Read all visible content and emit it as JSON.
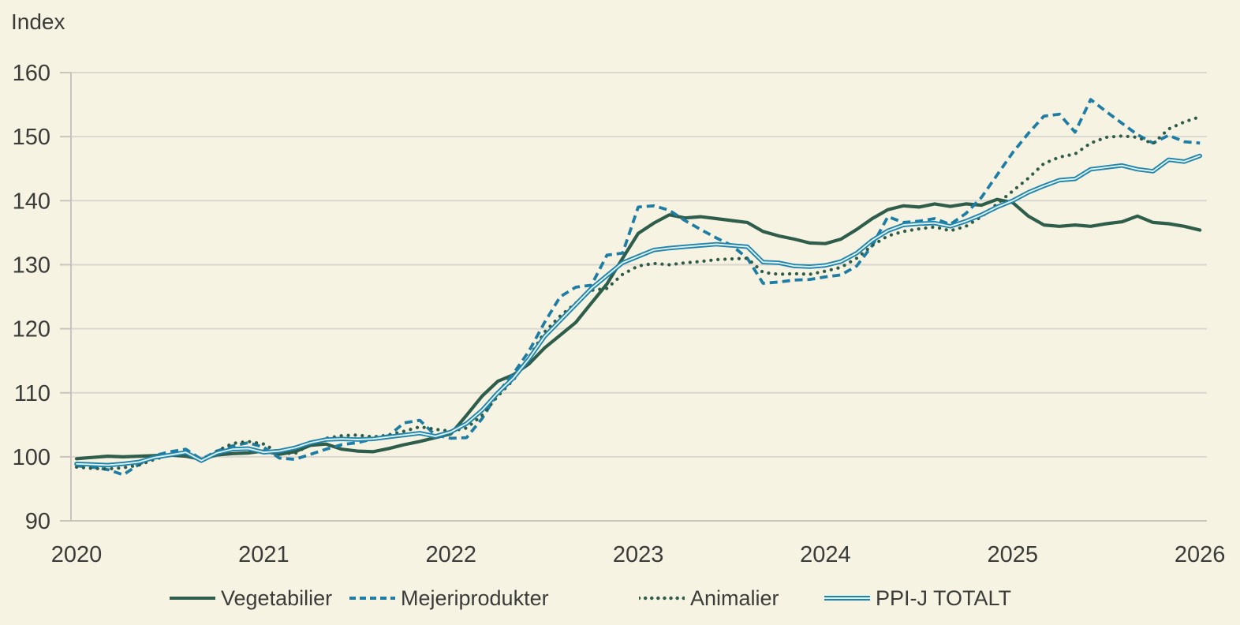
{
  "chart_data": {
    "type": "line",
    "title": "",
    "ylabel": "Index",
    "ylim": [
      90,
      160
    ],
    "yticks": [
      90,
      100,
      110,
      120,
      130,
      140,
      150,
      160
    ],
    "x_tick_labels": [
      "2020",
      "2021",
      "2022",
      "2023",
      "2024",
      "2025",
      "2026"
    ],
    "x_unit": "month",
    "x_range": "2020-01 to 2026-01",
    "grid": "horizontal",
    "legend_position": "bottom",
    "colors": {
      "background": "#f7f3e2",
      "gridline": "#d9d7cf",
      "axis": "#c7c5bd",
      "text": "#3b3b3a",
      "vegetabilier": "#2e5e4b",
      "mejeriprodukter": "#1d7da4",
      "animalier": "#2e5c49",
      "ppij_totalt": "#1e84ab",
      "ppij_totalt_inner": "#dff0f4"
    },
    "series": [
      {
        "name": "Vegetabilier",
        "style": "solid",
        "color": "#2e5e4b",
        "values": [
          99.7,
          99.9,
          100.1,
          100.0,
          100.1,
          100.2,
          100.3,
          100.1,
          99.6,
          100.3,
          100.5,
          100.6,
          100.9,
          100.4,
          100.8,
          101.8,
          102.0,
          101.2,
          100.9,
          100.8,
          101.3,
          101.9,
          102.4,
          103.0,
          103.6,
          106.5,
          109.5,
          111.8,
          112.8,
          114.5,
          117.0,
          119.0,
          121.0,
          124.0,
          127.0,
          131.0,
          134.9,
          136.5,
          137.8,
          137.3,
          137.5,
          137.2,
          136.9,
          136.6,
          135.2,
          134.5,
          134.0,
          133.4,
          133.3,
          134.0,
          135.5,
          137.2,
          138.6,
          139.2,
          139.0,
          139.5,
          139.1,
          139.5,
          139.3,
          140.2,
          139.7,
          137.6,
          136.2,
          136.0,
          136.2,
          136.0,
          136.4,
          136.7,
          137.6,
          136.6,
          136.4,
          136.0,
          135.4
        ]
      },
      {
        "name": "Mejeriprodukter",
        "style": "dashed",
        "color": "#1d7da4",
        "values": [
          98.6,
          98.4,
          98.0,
          97.2,
          98.8,
          100.2,
          100.8,
          101.2,
          99.6,
          100.9,
          101.7,
          102.2,
          101.5,
          99.8,
          99.6,
          100.4,
          101.2,
          101.9,
          102.2,
          102.8,
          103.3,
          105.3,
          105.7,
          103.4,
          102.9,
          103.0,
          106.0,
          110.0,
          113.0,
          116.5,
          121.0,
          125.0,
          126.5,
          126.8,
          131.5,
          131.8,
          139.0,
          139.2,
          138.5,
          136.9,
          135.5,
          134.2,
          133.0,
          131.0,
          127.1,
          127.3,
          127.6,
          127.7,
          128.1,
          128.4,
          129.8,
          133.0,
          137.5,
          136.6,
          136.8,
          137.2,
          136.3,
          138.0,
          140.5,
          144.0,
          147.5,
          150.5,
          153.2,
          153.5,
          150.7,
          155.8,
          153.9,
          152.1,
          150.3,
          149.0,
          150.2,
          149.2,
          149.0
        ]
      },
      {
        "name": "Animalier",
        "style": "dotted",
        "color": "#2e5c49",
        "values": [
          98.4,
          98.2,
          98.1,
          98.3,
          98.7,
          99.6,
          100.3,
          100.7,
          99.3,
          100.9,
          102.1,
          102.4,
          102.0,
          100.6,
          100.5,
          102.0,
          102.9,
          103.3,
          103.4,
          103.1,
          103.4,
          104.0,
          104.7,
          104.3,
          104.0,
          104.5,
          106.5,
          109.5,
          112.0,
          115.5,
          119.5,
          122.0,
          124.0,
          126.0,
          126.3,
          128.5,
          129.8,
          130.2,
          130.0,
          130.3,
          130.5,
          130.8,
          130.9,
          131.0,
          128.8,
          128.5,
          128.6,
          128.5,
          129.0,
          129.6,
          131.0,
          133.0,
          134.5,
          135.2,
          135.6,
          135.9,
          135.3,
          136.0,
          137.5,
          139.5,
          141.5,
          143.5,
          145.8,
          146.8,
          147.3,
          149.0,
          149.9,
          150.1,
          149.9,
          148.9,
          151.2,
          152.3,
          153.1
        ]
      },
      {
        "name": "PPI-J TOTALT",
        "style": "double",
        "color": "#1e84ab",
        "inner_color": "#dff0f4",
        "values": [
          98.9,
          98.8,
          98.7,
          98.9,
          99.2,
          99.9,
          100.3,
          100.7,
          99.4,
          100.6,
          101.2,
          101.3,
          100.7,
          100.9,
          101.4,
          102.2,
          102.7,
          102.8,
          102.7,
          102.8,
          103.1,
          103.4,
          103.7,
          103.2,
          103.9,
          105.2,
          107.3,
          110.0,
          112.3,
          115.3,
          118.8,
          121.3,
          123.8,
          126.3,
          128.3,
          130.3,
          131.3,
          132.3,
          132.6,
          132.8,
          133.0,
          133.2,
          133.0,
          132.8,
          130.4,
          130.3,
          129.8,
          129.7,
          129.9,
          130.5,
          131.8,
          133.8,
          135.3,
          136.2,
          136.4,
          136.5,
          136.0,
          136.8,
          137.8,
          139.0,
          140.0,
          141.3,
          142.3,
          143.2,
          143.4,
          144.9,
          145.2,
          145.5,
          144.9,
          144.6,
          146.4,
          146.1,
          147.0
        ]
      }
    ]
  }
}
